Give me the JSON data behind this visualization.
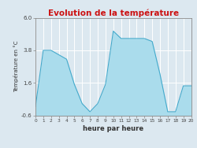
{
  "title": "Evolution de la température",
  "xlabel": "heure par heure",
  "ylabel": "Température en °C",
  "xlim": [
    0,
    20
  ],
  "ylim": [
    -0.6,
    6.0
  ],
  "yticks": [
    -0.6,
    1.6,
    3.8,
    6.0
  ],
  "xticks": [
    0,
    1,
    2,
    3,
    4,
    5,
    6,
    7,
    8,
    9,
    10,
    11,
    12,
    13,
    14,
    15,
    16,
    17,
    18,
    19,
    20
  ],
  "hours": [
    0,
    1,
    2,
    3,
    4,
    5,
    6,
    7,
    8,
    9,
    10,
    11,
    12,
    13,
    14,
    15,
    16,
    17,
    18,
    19,
    20
  ],
  "temps": [
    0.0,
    3.8,
    3.8,
    3.5,
    3.2,
    1.5,
    0.2,
    -0.35,
    0.2,
    1.5,
    5.1,
    4.6,
    4.6,
    4.6,
    4.6,
    4.4,
    2.2,
    -0.35,
    -0.35,
    1.4,
    1.4
  ],
  "fill_color": "#aadcec",
  "line_color": "#44aacc",
  "bg_color": "#dce8f0",
  "plot_bg_color": "#dce8f0",
  "title_color": "#cc1111",
  "grid_color": "#ffffff",
  "axis_label_color": "#333333",
  "tick_label_color": "#444444",
  "title_fontsize": 7.5,
  "xlabel_fontsize": 6.0,
  "ylabel_fontsize": 5.0,
  "xtick_fontsize": 4.2,
  "ytick_fontsize": 5.0
}
